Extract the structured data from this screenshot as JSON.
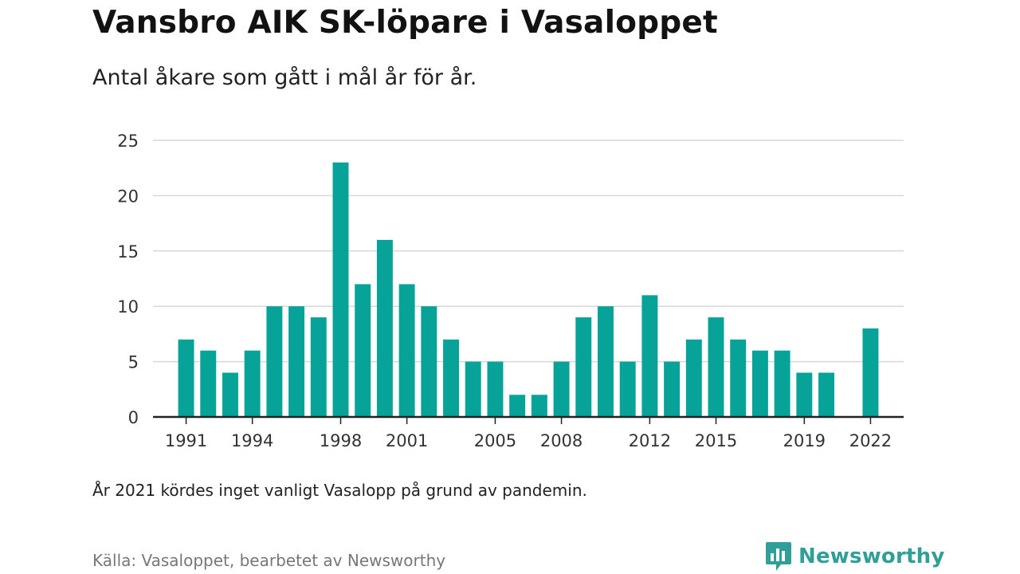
{
  "header": {
    "title": "Vansbro AIK SK-löpare i Vasaloppet",
    "subtitle": "Antal åkare som gått i mål år för år."
  },
  "footer": {
    "note": "År 2021 kördes inget vanligt Vasalopp på grund av pandemin.",
    "source": "Källa: Vasaloppet, bearbetet av Newsworthy",
    "brand": "Newsworthy",
    "brand_icon": "newsworthy-logo-icon"
  },
  "colors": {
    "bar": "#07a398",
    "grid": "#d8d8d8",
    "axis": "#222222",
    "brand": "#2f9f97"
  },
  "chart_data": {
    "type": "bar",
    "title": "Vansbro AIK SK-löpare i Vasaloppet",
    "subtitle": "Antal åkare som gått i mål år för år.",
    "x": [
      1991,
      1992,
      1993,
      1994,
      1995,
      1996,
      1997,
      1998,
      1999,
      2000,
      2001,
      2002,
      2003,
      2004,
      2005,
      2006,
      2007,
      2008,
      2009,
      2010,
      2011,
      2012,
      2013,
      2014,
      2015,
      2016,
      2017,
      2018,
      2019,
      2020,
      2022
    ],
    "values": [
      7,
      6,
      4,
      6,
      10,
      10,
      9,
      23,
      12,
      16,
      12,
      10,
      7,
      5,
      5,
      2,
      2,
      5,
      9,
      10,
      5,
      11,
      5,
      7,
      9,
      7,
      6,
      6,
      4,
      4,
      8
    ],
    "xlim": [
      1989.5,
      2023.5
    ],
    "ylim": [
      0,
      25
    ],
    "yticks": [
      "0",
      "5",
      "10",
      "15",
      "20",
      "25"
    ],
    "xticks": [
      "1991",
      "1994",
      "1998",
      "2001",
      "2005",
      "2008",
      "2012",
      "2015",
      "2019",
      "2022"
    ],
    "grid": true,
    "legend": "none"
  }
}
